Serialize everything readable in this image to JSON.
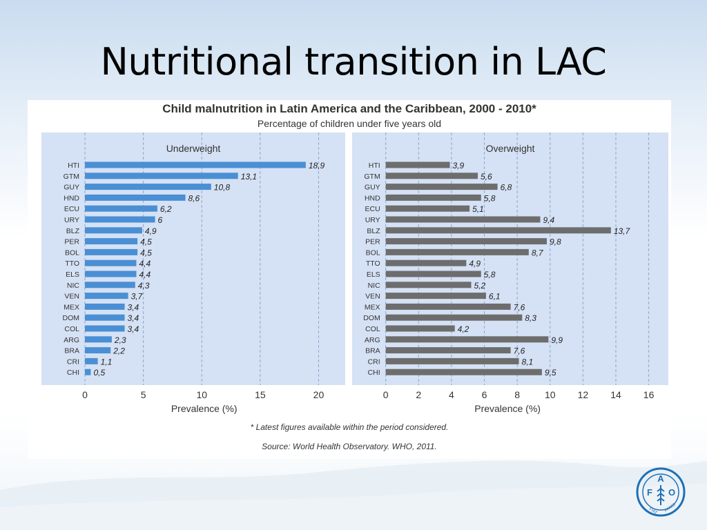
{
  "slide": {
    "title": "Nutritional transition in LAC"
  },
  "figure": {
    "title": "Child malnutrition in Latin America and the Caribbean, 2000 - 2010*",
    "subtitle": "Percentage of children under five years old",
    "footnote": "* Latest figures available within the period considered.",
    "source": "Source: World Health Observatory. WHO, 2011."
  },
  "colors": {
    "underweight_bar": "#4a8fd4",
    "overweight_bar": "#6d6d6d",
    "panel_bg": "#d5e1f4",
    "title_text": "#333333"
  },
  "logo": {
    "icon": "fao-logo-icon",
    "text": "FAO FIAT PANIS"
  },
  "chart_data": [
    {
      "type": "bar",
      "orientation": "horizontal",
      "title": "Underweight",
      "xlabel": "Prevalence (%)",
      "xlim": [
        0,
        21
      ],
      "xticks": [
        0,
        5,
        10,
        15,
        20
      ],
      "grid": true,
      "categories": [
        "HTI",
        "GTM",
        "GUY",
        "HND",
        "ECU",
        "URY",
        "BLZ",
        "PER",
        "BOL",
        "TTO",
        "ELS",
        "NIC",
        "VEN",
        "MEX",
        "DOM",
        "COL",
        "ARG",
        "BRA",
        "CRI",
        "CHI"
      ],
      "values": [
        18.9,
        13.1,
        10.8,
        8.6,
        6.2,
        6,
        4.9,
        4.5,
        4.5,
        4.4,
        4.4,
        4.3,
        3.7,
        3.4,
        3.4,
        3.4,
        2.3,
        2.2,
        1.1,
        0.5
      ],
      "labels": [
        "18,9",
        "13,1",
        "10,8",
        "8,6",
        "6,2",
        "6",
        "4,9",
        "4,5",
        "4,5",
        "4,4",
        "4,4",
        "4,3",
        "3,7",
        "3,4",
        "3,4",
        "3,4",
        "2,3",
        "2,2",
        "1,1",
        "0,5"
      ]
    },
    {
      "type": "bar",
      "orientation": "horizontal",
      "title": "Overweight",
      "xlabel": "Prevalence (%)",
      "xlim": [
        0,
        16.5
      ],
      "xticks": [
        0,
        2,
        4,
        6,
        8,
        10,
        12,
        14,
        16
      ],
      "grid": true,
      "categories": [
        "HTI",
        "GTM",
        "GUY",
        "HND",
        "ECU",
        "URY",
        "BLZ",
        "PER",
        "BOL",
        "TTO",
        "ELS",
        "NIC",
        "VEN",
        "MEX",
        "DOM",
        "COL",
        "ARG",
        "BRA",
        "CRI",
        "CHI"
      ],
      "values": [
        3.9,
        5.6,
        6.8,
        5.8,
        5.1,
        9.4,
        13.7,
        9.8,
        8.7,
        4.9,
        5.8,
        5.2,
        6.1,
        7.6,
        8.3,
        4.2,
        9.9,
        7.6,
        8.1,
        9.5
      ],
      "labels": [
        "3,9",
        "5,6",
        "6,8",
        "5,8",
        "5,1",
        "9,4",
        "13,7",
        "9,8",
        "8,7",
        "4,9",
        "5,8",
        "5,2",
        "6,1",
        "7,6",
        "8,3",
        "4,2",
        "9,9",
        "7,6",
        "8,1",
        "9,5"
      ]
    }
  ]
}
